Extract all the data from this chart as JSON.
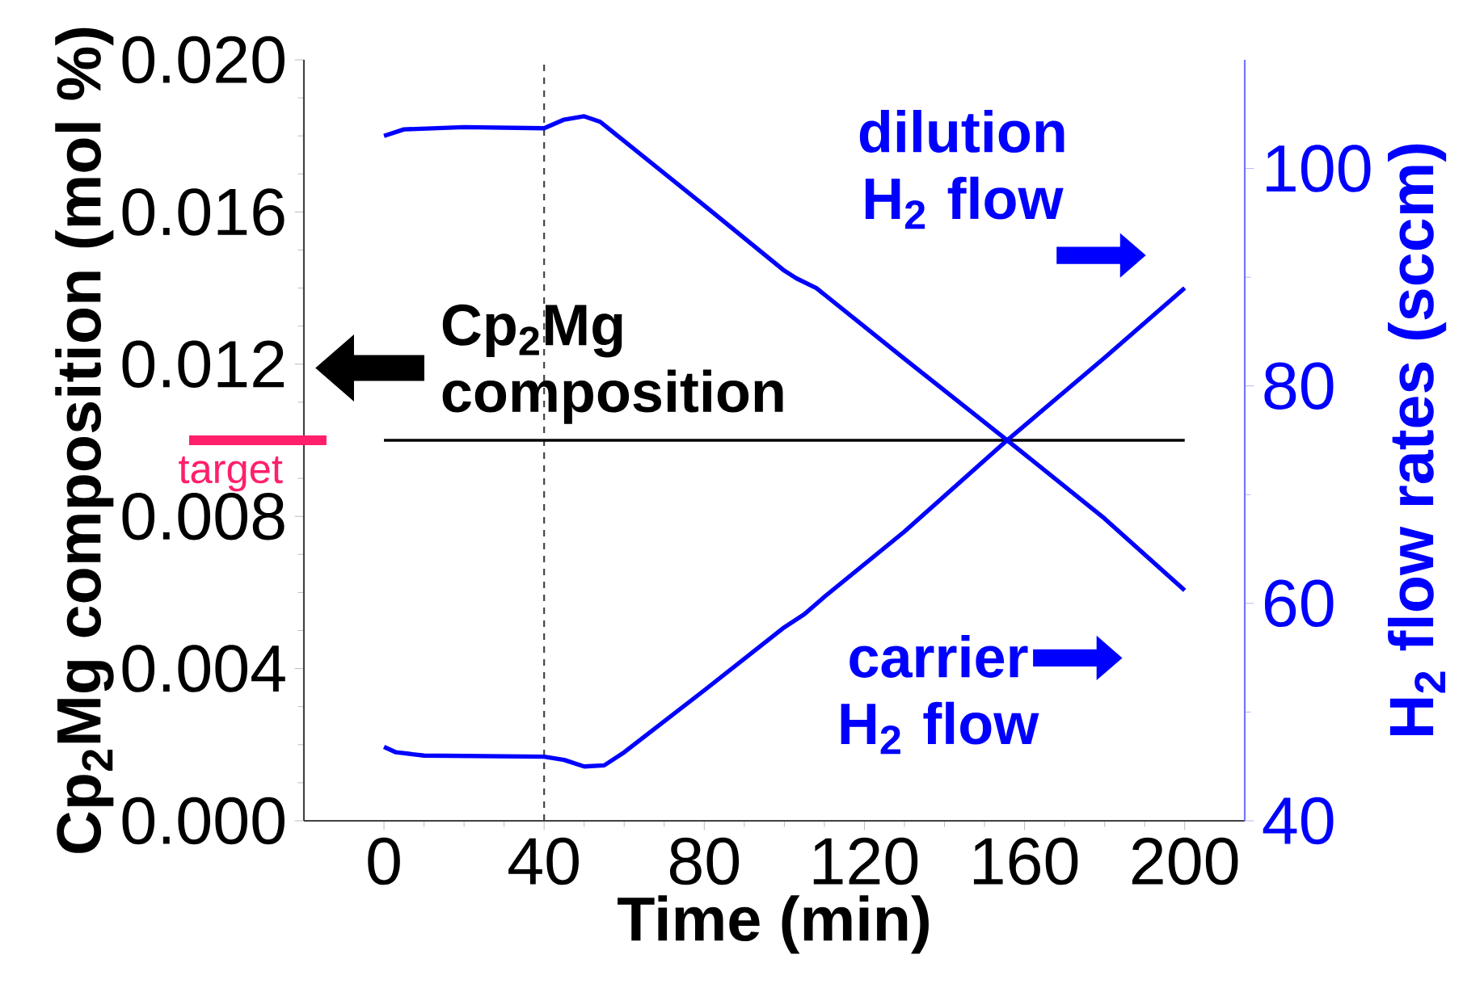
{
  "chart_data": {
    "type": "line",
    "xlabel": "Time (min)",
    "ylabel": "Cp$_{2}$Mg composition (mol %)",
    "y2label": "H$_{2}$ flow rates (sccm)",
    "xlim": [
      -20,
      215
    ],
    "xticks": [
      0,
      40,
      80,
      120,
      160,
      200
    ],
    "ylim": [
      0,
      0.02
    ],
    "yticks": [
      {
        "value": 0,
        "label": "0.000"
      },
      0.004,
      0.008,
      0.012,
      0.016,
      {
        "value": 0.02,
        "label": "0.020"
      }
    ],
    "y2lim": [
      40,
      110
    ],
    "y2ticks": [
      40,
      60,
      80,
      100
    ],
    "series": [
      {
        "name": "Cp$_{2}$Mg composition",
        "color": "#000000",
        "x": [
          0,
          200
        ],
        "values": [
          0.01,
          0.01
        ]
      },
      {
        "name": "dilution H$_{2}$ flow",
        "color": "#0000ff",
        "axis": "y2",
        "x": [
          0,
          5,
          20,
          40,
          45,
          50,
          54,
          80,
          100,
          103,
          108,
          130,
          155,
          180,
          200
        ],
        "values": [
          103.0,
          103.6,
          103.8,
          103.7,
          104.5,
          104.8,
          104.3,
          96.6,
          90.6,
          89.9,
          89.0,
          82.5,
          75.2,
          67.8,
          61.2
        ]
      },
      {
        "name": "carrier H$_{2}$ flow",
        "color": "#0000ff",
        "axis": "y2",
        "x": [
          0,
          3,
          10,
          40,
          45,
          50,
          55,
          60,
          80,
          100,
          105,
          110,
          130,
          155,
          180,
          200
        ],
        "values": [
          46.8,
          46.3,
          46.0,
          45.9,
          45.6,
          45.0,
          45.1,
          46.3,
          52.0,
          57.8,
          59.0,
          60.6,
          66.6,
          74.8,
          82.6,
          89.0
        ]
      }
    ],
    "ref_lines": [
      {
        "axis": "x",
        "value": 40,
        "color": "#404040",
        "line_style": "dashed"
      },
      {
        "axis": "y",
        "value": 0.01,
        "label": "target",
        "color": "#ff1f6a"
      }
    ]
  }
}
